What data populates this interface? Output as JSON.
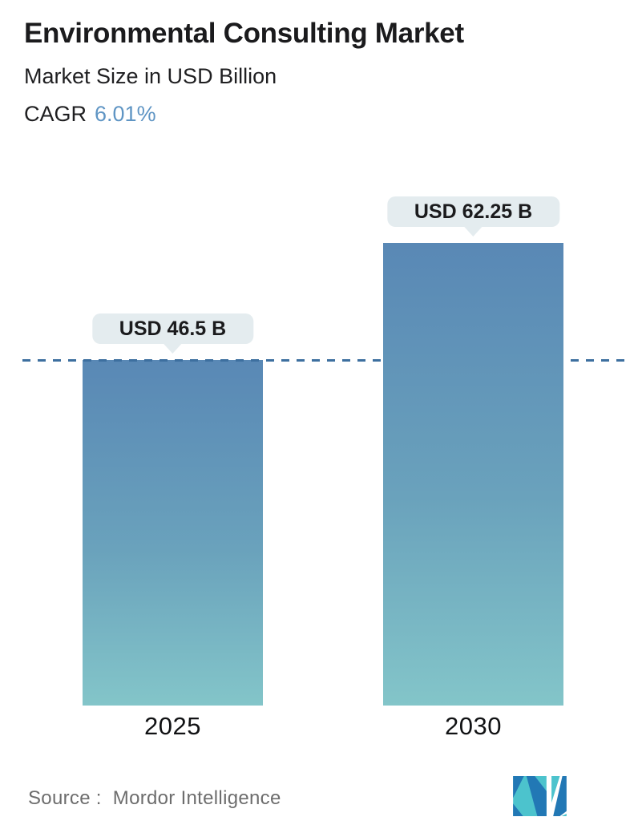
{
  "header": {
    "title": "Environmental Consulting Market",
    "subtitle": "Market Size in USD Billion",
    "cagr_label": "CAGR",
    "cagr_value": "6.01%"
  },
  "chart_data": {
    "type": "bar",
    "title": "Environmental Consulting Market",
    "subtitle": "Market Size in USD Billion",
    "unit": "USD Billion",
    "categories": [
      "2025",
      "2030"
    ],
    "values": [
      46.5,
      62.25
    ],
    "value_labels": [
      "USD 46.5 B",
      "USD 62.25 B"
    ],
    "cagr_percent": 6.01,
    "ylim": [
      0,
      70
    ],
    "grid": false,
    "legend": false,
    "annotations": {
      "dashed_reference_line_at_value": 46.5,
      "dashed_line_color": "#3d6f9f"
    },
    "colors": {
      "bar_gradient_top": "#5988b5",
      "bar_gradient_bottom": "#83c5c9",
      "tooltip_background": "#e4ecef",
      "cagr_accent": "#5f95c4",
      "text": "#1b1b1d"
    }
  },
  "footer": {
    "source_label": "Source :",
    "source_value": "Mordor Intelligence",
    "logo": "mordor-intelligence-logo",
    "logo_colors": {
      "teal": "#4cc3cd",
      "blue": "#2278b5"
    }
  }
}
